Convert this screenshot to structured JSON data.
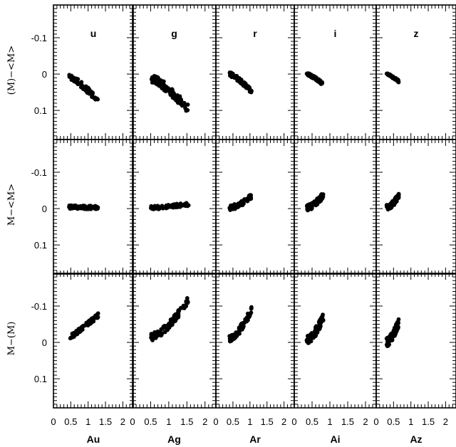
{
  "chart_data": {
    "type": "scatter",
    "grid": false,
    "legend": "none",
    "xlim": [
      0,
      2.3
    ],
    "ylim": [
      0.18,
      -0.19
    ],
    "y_inverted": true,
    "columns": [
      {
        "band": "u",
        "xlabel": "Au"
      },
      {
        "band": "g",
        "xlabel": "Ag"
      },
      {
        "band": "r",
        "xlabel": "Ar"
      },
      {
        "band": "i",
        "xlabel": "Ai"
      },
      {
        "band": "z",
        "xlabel": "Az"
      }
    ],
    "row_ylabels": [
      "(M)−<M>",
      "M−<M>",
      "M−(M)"
    ],
    "x_tick_labels": [
      "0",
      "0.5",
      "1",
      "1.5",
      "2"
    ],
    "x_ticks": [
      0,
      0.5,
      1,
      1.5,
      2
    ],
    "y_tick_labels": [
      "-0.1",
      "0",
      "0.1"
    ],
    "y_ticks": [
      -0.1,
      0,
      0.1
    ],
    "panels": [
      [
        {
          "x_range": [
            0.45,
            1.28
          ],
          "y_start": 0.005,
          "y_end": 0.07,
          "curve": 1.15,
          "spread": 0.008,
          "n": 70
        },
        {
          "x_range": [
            0.5,
            1.55
          ],
          "y_start": 0.01,
          "y_end": 0.098,
          "curve": 1.3,
          "spread": 0.012,
          "n": 80
        },
        {
          "x_range": [
            0.4,
            1.05
          ],
          "y_start": 0.0,
          "y_end": 0.048,
          "curve": 1.3,
          "spread": 0.006,
          "n": 70
        },
        {
          "x_range": [
            0.35,
            0.8
          ],
          "y_start": 0.0,
          "y_end": 0.027,
          "curve": 1.3,
          "spread": 0.004,
          "n": 60
        },
        {
          "x_range": [
            0.3,
            0.65
          ],
          "y_start": 0.0,
          "y_end": 0.02,
          "curve": 1.3,
          "spread": 0.003,
          "n": 60
        }
      ],
      [
        {
          "x_range": [
            0.45,
            1.3
          ],
          "y_start": -0.004,
          "y_end": -0.002,
          "curve": 1.0,
          "spread": 0.005,
          "n": 80
        },
        {
          "x_range": [
            0.5,
            1.55
          ],
          "y_start": -0.002,
          "y_end": -0.012,
          "curve": 1.3,
          "spread": 0.005,
          "n": 80
        },
        {
          "x_range": [
            0.4,
            1.05
          ],
          "y_start": -0.002,
          "y_end": -0.035,
          "curve": 1.6,
          "spread": 0.007,
          "n": 80
        },
        {
          "x_range": [
            0.35,
            0.82
          ],
          "y_start": -0.002,
          "y_end": -0.038,
          "curve": 1.6,
          "spread": 0.008,
          "n": 80
        },
        {
          "x_range": [
            0.3,
            0.65
          ],
          "y_start": -0.002,
          "y_end": -0.035,
          "curve": 1.6,
          "spread": 0.008,
          "n": 80
        }
      ],
      [
        {
          "x_range": [
            0.45,
            1.3
          ],
          "y_start": -0.012,
          "y_end": -0.075,
          "curve": 1.05,
          "spread": 0.006,
          "n": 80
        },
        {
          "x_range": [
            0.5,
            1.55
          ],
          "y_start": -0.015,
          "y_end": -0.12,
          "curve": 1.6,
          "spread": 0.01,
          "n": 90
        },
        {
          "x_range": [
            0.4,
            1.05
          ],
          "y_start": -0.01,
          "y_end": -0.09,
          "curve": 1.5,
          "spread": 0.01,
          "n": 80
        },
        {
          "x_range": [
            0.35,
            0.82
          ],
          "y_start": -0.005,
          "y_end": -0.07,
          "curve": 1.5,
          "spread": 0.012,
          "n": 80
        },
        {
          "x_range": [
            0.3,
            0.65
          ],
          "y_start": 0.0,
          "y_end": -0.055,
          "curve": 1.5,
          "spread": 0.012,
          "n": 80
        }
      ]
    ]
  }
}
